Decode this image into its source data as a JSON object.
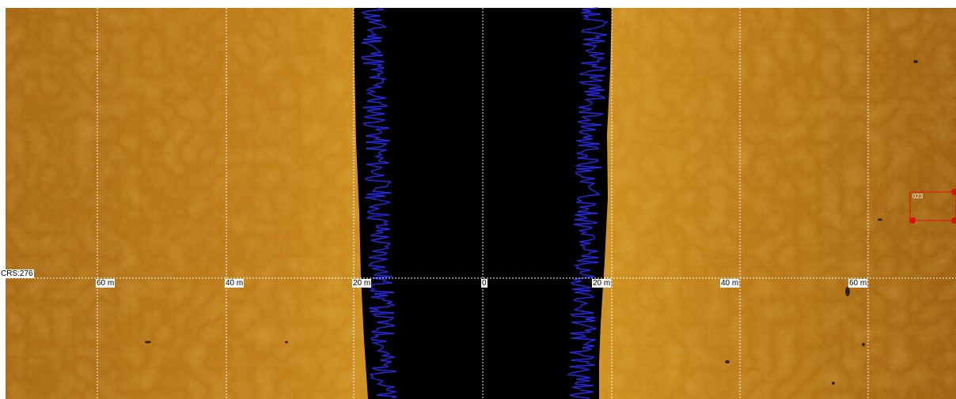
{
  "window": {
    "bg_color": "#ffffff"
  },
  "sonar": {
    "course_label": "CRS:276",
    "range_labels": [
      "60 m",
      "40 m",
      "20 m",
      "0",
      "20 m",
      "40 m",
      "60 m"
    ],
    "range_values_m": [
      -60,
      -40,
      -20,
      0,
      20,
      40,
      60
    ],
    "colors": {
      "seabed_dark": "#8a4f06",
      "seabed_mid": "#c77a12",
      "seabed_light": "#e3a030",
      "water_column": "#000000",
      "altitude_trace": "#2a2ae0",
      "grid_line": "#ffffff",
      "target_marker": "#e01010"
    },
    "target": {
      "label": "023",
      "icon": "target-box-icon"
    }
  }
}
